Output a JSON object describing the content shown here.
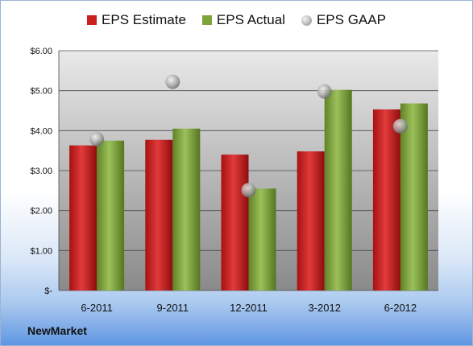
{
  "chart_data": {
    "type": "bar",
    "categories": [
      "6-2011",
      "9-2011",
      "12-2011",
      "3-2012",
      "6-2012"
    ],
    "series": [
      {
        "name": "EPS Estimate",
        "values": [
          3.63,
          3.77,
          3.4,
          3.48,
          4.53
        ],
        "color": "#cc1f1f"
      },
      {
        "name": "EPS Actual",
        "values": [
          3.75,
          4.05,
          2.55,
          5.02,
          4.68
        ],
        "color": "#7ea33a"
      },
      {
        "name": "EPS GAAP",
        "values": [
          3.79,
          5.22,
          2.51,
          4.98,
          4.11
        ],
        "color": "#a8a8a8",
        "marker": "sphere"
      }
    ],
    "yticks": [
      "$-",
      "$1.00",
      "$2.00",
      "$3.00",
      "$4.00",
      "$5.00",
      "$6.00"
    ],
    "ylim": [
      0,
      6
    ],
    "grid": true,
    "legend_position": "top"
  },
  "footer": {
    "brand": "NewMarket"
  },
  "colors": {
    "plot_top": "#e9e9e9",
    "plot_bottom": "#8a8a8a",
    "background_bottom": "#5f97e3"
  }
}
